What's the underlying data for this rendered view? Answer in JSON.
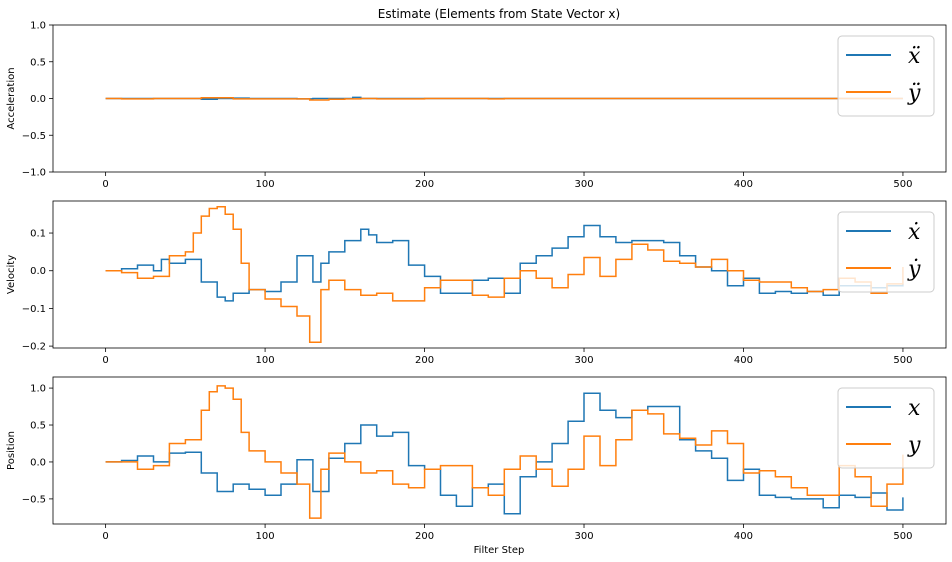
{
  "figure": {
    "title": "Estimate (Elements from State Vector x)",
    "xlabel": "Filter Step"
  },
  "colors": {
    "x_series": "#1f77b4",
    "y_series": "#ff7f0e",
    "axes": "#000000",
    "legend_border": "#cccccc"
  },
  "chart_data": [
    {
      "type": "line",
      "title": "Estimate (Elements from State Vector x)",
      "xlabel": "",
      "ylabel": "Acceleration",
      "xlim": [
        -33,
        527
      ],
      "ylim": [
        -1.0,
        1.0
      ],
      "xticks": [
        0,
        100,
        200,
        300,
        400,
        500
      ],
      "yticks": [
        -1.0,
        -0.5,
        0.0,
        0.5,
        1.0
      ],
      "ytick_labels": [
        "−1.0",
        "−0.5",
        "0.0",
        "0.5",
        "1.0"
      ],
      "legend_position": "top-right",
      "grid": false,
      "drawstyle": "steps",
      "series": [
        {
          "name": "ẍ",
          "color": "#1f77b4",
          "x": [
            0,
            10,
            20,
            30,
            40,
            50,
            60,
            70,
            80,
            90,
            100,
            110,
            120,
            130,
            140,
            150,
            155,
            160,
            170,
            180,
            190,
            200,
            250,
            300,
            350,
            400,
            450,
            500
          ],
          "y": [
            0,
            0,
            0,
            0,
            0,
            0,
            -0.01,
            0.0,
            0.005,
            0,
            0,
            0,
            -0.005,
            0.0,
            0,
            0,
            0.015,
            0,
            0,
            0,
            0,
            0,
            0,
            0,
            0,
            0,
            0,
            0
          ]
        },
        {
          "name": "ÿ",
          "color": "#ff7f0e",
          "x": [
            0,
            10,
            20,
            30,
            40,
            50,
            60,
            70,
            80,
            90,
            100,
            110,
            120,
            128,
            140,
            150,
            160,
            170,
            180,
            190,
            200,
            230,
            240,
            250,
            300,
            350,
            400,
            450,
            500
          ],
          "y": [
            0,
            -0.005,
            -0.005,
            0,
            0,
            0,
            0.01,
            0.01,
            -0.005,
            -0.005,
            -0.005,
            -0.005,
            -0.005,
            -0.02,
            -0.01,
            -0.005,
            0,
            -0.005,
            -0.005,
            -0.005,
            0,
            0,
            -0.005,
            0,
            0,
            0,
            0,
            0,
            0
          ]
        }
      ]
    },
    {
      "type": "line",
      "title": "",
      "xlabel": "",
      "ylabel": "Velocity",
      "xlim": [
        -33,
        527
      ],
      "ylim": [
        -0.205,
        0.185
      ],
      "xticks": [
        0,
        100,
        200,
        300,
        400,
        500
      ],
      "yticks": [
        -0.2,
        -0.1,
        0.0,
        0.1
      ],
      "ytick_labels": [
        "−0.2",
        "−0.1",
        "0.0",
        "0.1"
      ],
      "legend_position": "top-right",
      "grid": false,
      "drawstyle": "steps",
      "series": [
        {
          "name": "ẋ",
          "color": "#1f77b4",
          "x": [
            0,
            10,
            20,
            30,
            35,
            40,
            50,
            60,
            70,
            75,
            80,
            90,
            100,
            110,
            120,
            130,
            135,
            140,
            150,
            160,
            165,
            170,
            180,
            190,
            200,
            210,
            220,
            230,
            240,
            250,
            260,
            270,
            280,
            290,
            300,
            310,
            320,
            330,
            340,
            350,
            360,
            370,
            380,
            390,
            400,
            410,
            420,
            430,
            440,
            450,
            460,
            470,
            480,
            490,
            500
          ],
          "y": [
            0.0,
            0.005,
            0.015,
            0.0,
            0.03,
            0.02,
            0.03,
            -0.03,
            -0.07,
            -0.08,
            -0.06,
            -0.05,
            -0.055,
            -0.03,
            0.04,
            -0.03,
            0.02,
            0.05,
            0.08,
            0.11,
            0.095,
            0.075,
            0.08,
            0.015,
            -0.015,
            -0.06,
            -0.06,
            -0.025,
            -0.02,
            -0.06,
            0.02,
            0.04,
            0.06,
            0.09,
            0.12,
            0.09,
            0.075,
            0.08,
            0.08,
            0.075,
            0.04,
            0.01,
            0.0,
            -0.04,
            -0.02,
            -0.06,
            -0.055,
            -0.06,
            -0.055,
            -0.065,
            -0.04,
            -0.04,
            -0.045,
            -0.04,
            -0.035
          ]
        },
        {
          "name": "ẏ",
          "color": "#ff7f0e",
          "x": [
            0,
            10,
            20,
            30,
            40,
            50,
            55,
            60,
            65,
            70,
            75,
            80,
            85,
            90,
            100,
            110,
            120,
            128,
            135,
            140,
            150,
            160,
            170,
            180,
            190,
            200,
            210,
            220,
            230,
            240,
            250,
            260,
            270,
            280,
            290,
            300,
            310,
            320,
            330,
            340,
            350,
            360,
            370,
            380,
            390,
            400,
            410,
            420,
            430,
            440,
            450,
            460,
            470,
            480,
            490,
            500
          ],
          "y": [
            0.0,
            -0.005,
            -0.02,
            -0.015,
            0.04,
            0.05,
            0.1,
            0.145,
            0.165,
            0.17,
            0.15,
            0.11,
            0.02,
            -0.05,
            -0.075,
            -0.095,
            -0.12,
            -0.19,
            -0.05,
            -0.025,
            -0.05,
            -0.065,
            -0.06,
            -0.08,
            -0.08,
            -0.045,
            -0.025,
            -0.025,
            -0.065,
            -0.07,
            -0.02,
            0.0,
            -0.02,
            -0.045,
            -0.01,
            0.035,
            -0.015,
            0.03,
            0.07,
            0.055,
            0.025,
            0.02,
            0.01,
            0.03,
            0.0,
            -0.025,
            -0.03,
            -0.03,
            -0.045,
            -0.055,
            -0.05,
            -0.02,
            -0.03,
            -0.06,
            -0.035,
            0.01
          ]
        }
      ]
    },
    {
      "type": "line",
      "title": "",
      "xlabel": "Filter Step",
      "ylabel": "Position",
      "xlim": [
        -33,
        527
      ],
      "ylim": [
        -0.84,
        1.15
      ],
      "xticks": [
        0,
        100,
        200,
        300,
        400,
        500
      ],
      "yticks": [
        -0.5,
        0.0,
        0.5,
        1.0
      ],
      "ytick_labels": [
        "−0.5",
        "0.0",
        "0.5",
        "1.0"
      ],
      "legend_position": "top-right",
      "grid": false,
      "drawstyle": "steps",
      "series": [
        {
          "name": "x",
          "color": "#1f77b4",
          "x": [
            0,
            10,
            20,
            30,
            40,
            50,
            60,
            70,
            80,
            90,
            100,
            110,
            120,
            130,
            140,
            150,
            160,
            170,
            180,
            190,
            200,
            210,
            220,
            230,
            240,
            250,
            260,
            270,
            280,
            290,
            300,
            310,
            320,
            330,
            340,
            350,
            360,
            370,
            380,
            390,
            400,
            410,
            420,
            430,
            440,
            450,
            460,
            470,
            480,
            490,
            500
          ],
          "y": [
            0.0,
            0.02,
            0.08,
            0.0,
            0.12,
            0.13,
            -0.15,
            -0.4,
            -0.3,
            -0.37,
            -0.45,
            -0.3,
            0.03,
            -0.4,
            0.05,
            0.25,
            0.5,
            0.35,
            0.4,
            -0.05,
            -0.1,
            -0.45,
            -0.6,
            -0.35,
            -0.3,
            -0.7,
            -0.2,
            0.0,
            0.25,
            0.55,
            0.93,
            0.7,
            0.6,
            0.7,
            0.75,
            0.75,
            0.3,
            0.15,
            0.05,
            -0.25,
            -0.1,
            -0.45,
            -0.48,
            -0.5,
            -0.5,
            -0.62,
            -0.45,
            -0.48,
            -0.42,
            -0.65,
            -0.48
          ]
        },
        {
          "name": "y",
          "color": "#ff7f0e",
          "x": [
            0,
            10,
            20,
            30,
            40,
            50,
            60,
            65,
            70,
            75,
            80,
            85,
            90,
            100,
            110,
            120,
            128,
            135,
            140,
            150,
            160,
            170,
            180,
            190,
            200,
            210,
            220,
            230,
            240,
            250,
            260,
            270,
            280,
            290,
            300,
            310,
            320,
            330,
            340,
            350,
            360,
            370,
            380,
            390,
            400,
            410,
            420,
            430,
            440,
            450,
            460,
            470,
            480,
            490,
            500
          ],
          "y": [
            0.0,
            0.0,
            -0.1,
            -0.05,
            0.25,
            0.3,
            0.7,
            0.95,
            1.03,
            1.0,
            0.85,
            0.4,
            0.15,
            0.0,
            -0.15,
            -0.3,
            -0.76,
            -0.1,
            0.12,
            0.0,
            -0.15,
            -0.12,
            -0.3,
            -0.35,
            -0.1,
            -0.05,
            -0.05,
            -0.35,
            -0.45,
            -0.1,
            0.08,
            -0.1,
            -0.33,
            -0.1,
            0.35,
            -0.05,
            0.3,
            0.7,
            0.65,
            0.38,
            0.32,
            0.23,
            0.42,
            0.25,
            -0.15,
            -0.12,
            -0.2,
            -0.35,
            -0.45,
            -0.45,
            -0.05,
            -0.2,
            -0.6,
            -0.3,
            0.1
          ]
        }
      ]
    }
  ]
}
